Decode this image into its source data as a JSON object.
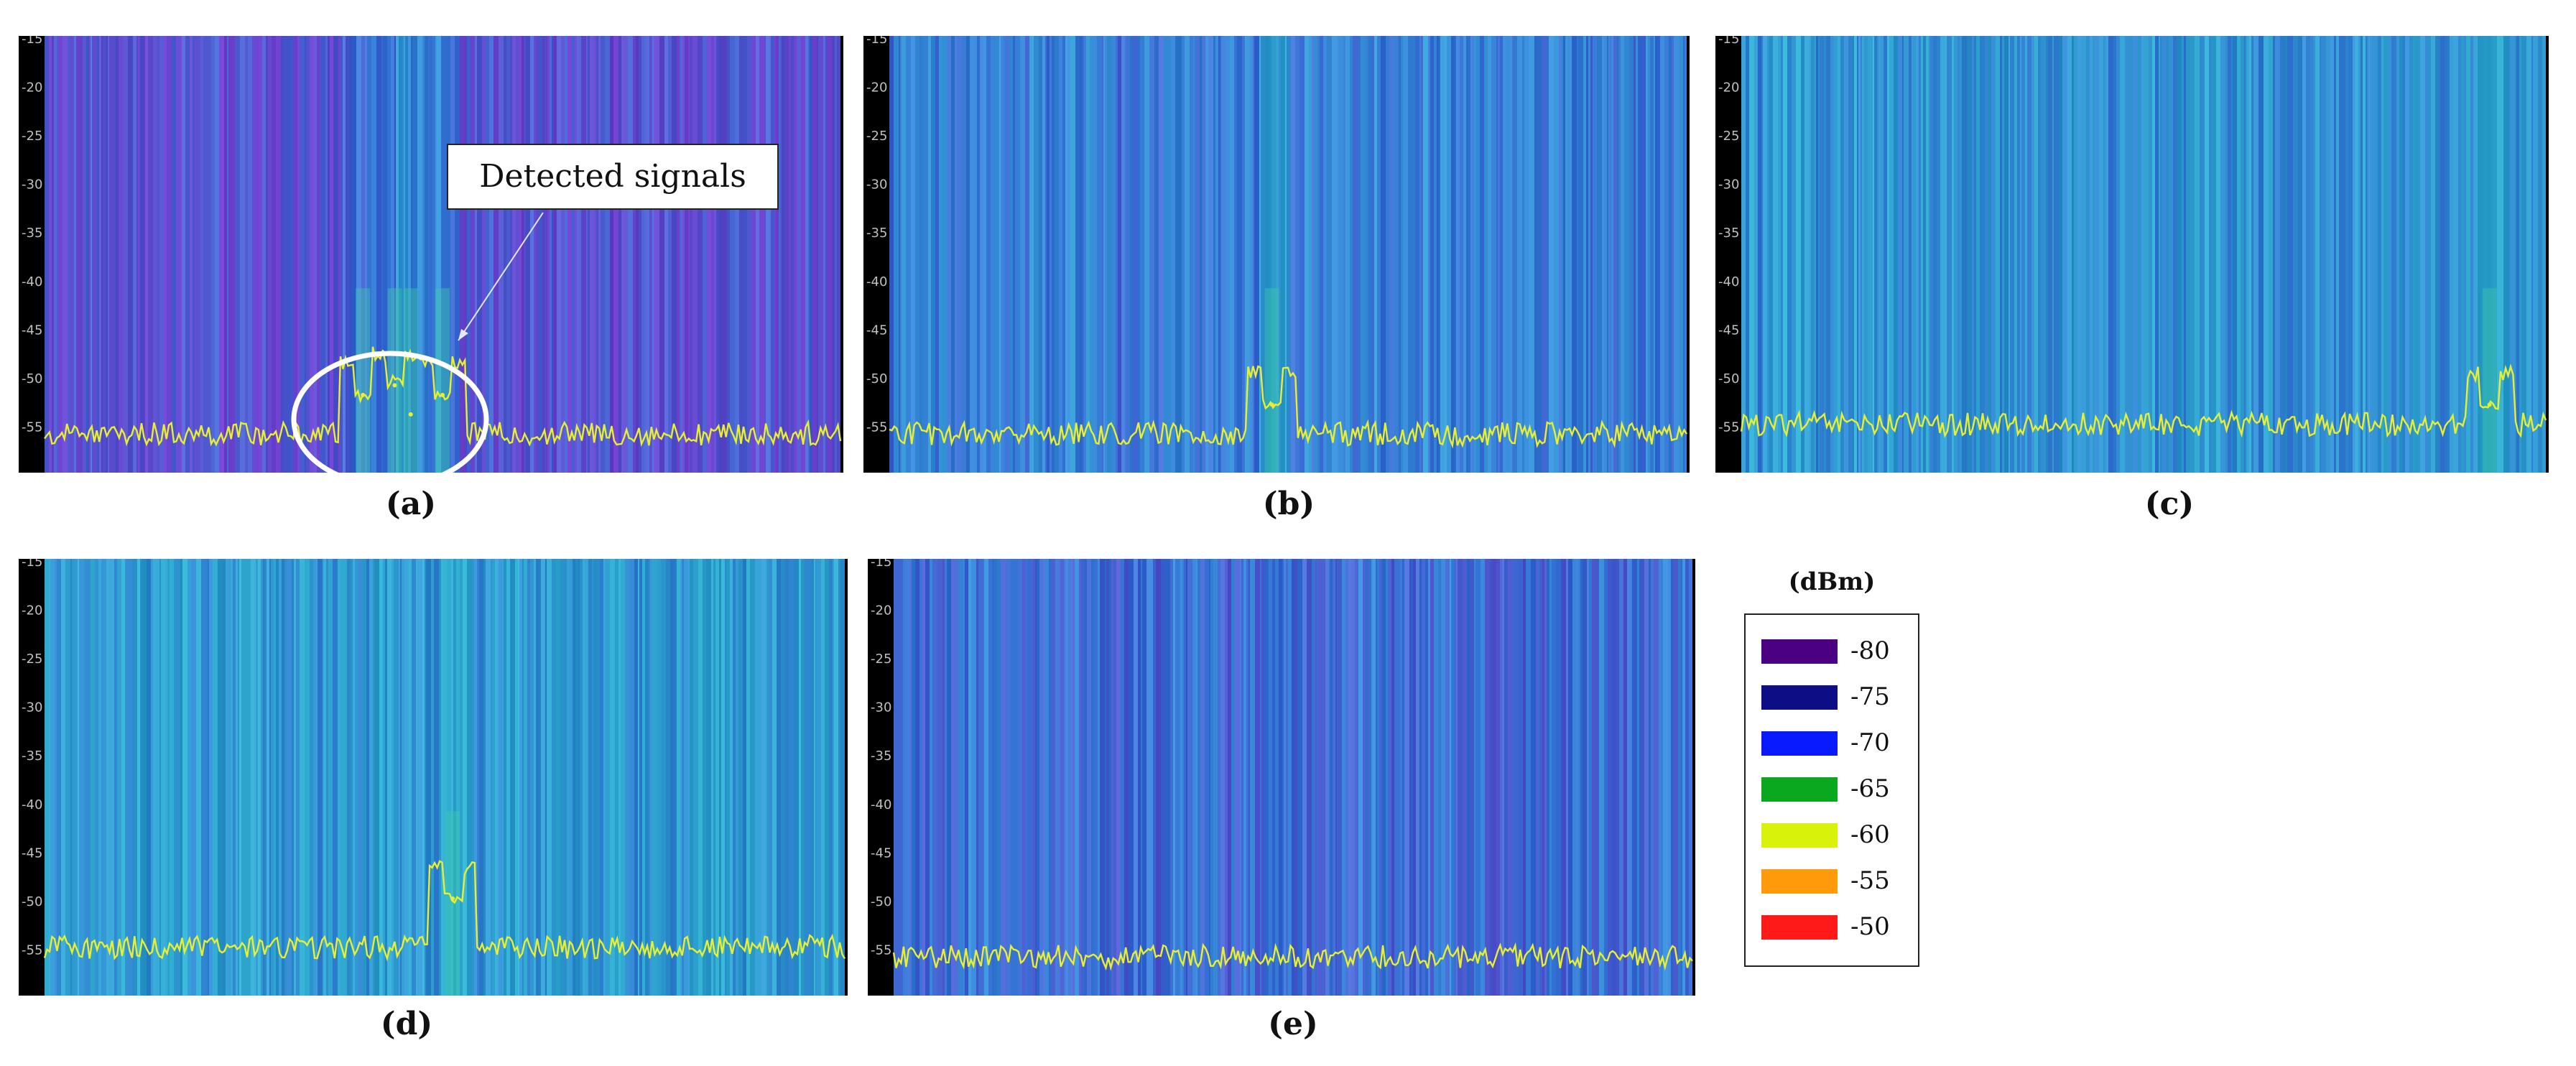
{
  "chart_data": [
    {
      "type": "heatmap",
      "id": "a",
      "caption": "(a)",
      "title": "",
      "xlabel": "",
      "ylabel": "",
      "y_ticks": [
        "-15",
        "-20",
        "-25",
        "-30",
        "-35",
        "-40",
        "-45",
        "-50",
        "-55"
      ],
      "ylim": [
        -60,
        -15
      ],
      "noise_floor_dbm": -56,
      "background_level_dbm": -78,
      "peaks": [
        {
          "x": 0.4,
          "y": -52
        },
        {
          "x": 0.44,
          "y": -51
        },
        {
          "x": 0.46,
          "y": -54
        },
        {
          "x": 0.5,
          "y": -52
        }
      ],
      "annotation": "Detected signals"
    },
    {
      "type": "heatmap",
      "id": "b",
      "caption": "(b)",
      "title": "",
      "xlabel": "",
      "ylabel": "",
      "y_ticks": [
        "-15",
        "-20",
        "-25",
        "-30",
        "-35",
        "-40",
        "-45",
        "-50",
        "-55"
      ],
      "ylim": [
        -60,
        -15
      ],
      "noise_floor_dbm": -56,
      "background_level_dbm": -72,
      "peaks": [
        {
          "x": 0.48,
          "y": -53
        }
      ]
    },
    {
      "type": "heatmap",
      "id": "c",
      "caption": "(c)",
      "title": "",
      "xlabel": "",
      "ylabel": "",
      "y_ticks": [
        "-15",
        "-20",
        "-25",
        "-30",
        "-35",
        "-40",
        "-45",
        "-50",
        "-55"
      ],
      "ylim": [
        -60,
        -15
      ],
      "noise_floor_dbm": -55,
      "background_level_dbm": -69,
      "peaks": [
        {
          "x": 0.93,
          "y": -53
        }
      ]
    },
    {
      "type": "heatmap",
      "id": "d",
      "caption": "(d)",
      "title": "",
      "xlabel": "",
      "ylabel": "",
      "y_ticks": [
        "-15",
        "-20",
        "-25",
        "-30",
        "-35",
        "-40",
        "-45",
        "-50",
        "-55"
      ],
      "ylim": [
        -60,
        -15
      ],
      "noise_floor_dbm": -55,
      "background_level_dbm": -68,
      "peaks": [
        {
          "x": 0.51,
          "y": -50
        }
      ]
    },
    {
      "type": "heatmap",
      "id": "e",
      "caption": "(e)",
      "title": "",
      "xlabel": "",
      "ylabel": "",
      "y_ticks": [
        "-15",
        "-20",
        "-25",
        "-30",
        "-35",
        "-40",
        "-45",
        "-50",
        "-55"
      ],
      "ylim": [
        -60,
        -15
      ],
      "noise_floor_dbm": -56,
      "background_level_dbm": -74,
      "peaks": []
    }
  ],
  "legend": {
    "title": "(dBm)",
    "items": [
      {
        "label": "-80",
        "color": "#4b0082"
      },
      {
        "label": "-75",
        "color": "#0d0d85"
      },
      {
        "label": "-70",
        "color": "#0a1aff"
      },
      {
        "label": "-65",
        "color": "#0aa81f"
      },
      {
        "label": "-60",
        "color": "#d8f20a"
      },
      {
        "label": "-55",
        "color": "#ff9a0a"
      },
      {
        "label": "-50",
        "color": "#ff1a1a"
      }
    ]
  },
  "colors": {
    "trace": "#e8ef30",
    "axis_background": "#000000",
    "tick_text": "#bfbfbf",
    "annotation_circle": "#ffffff"
  }
}
